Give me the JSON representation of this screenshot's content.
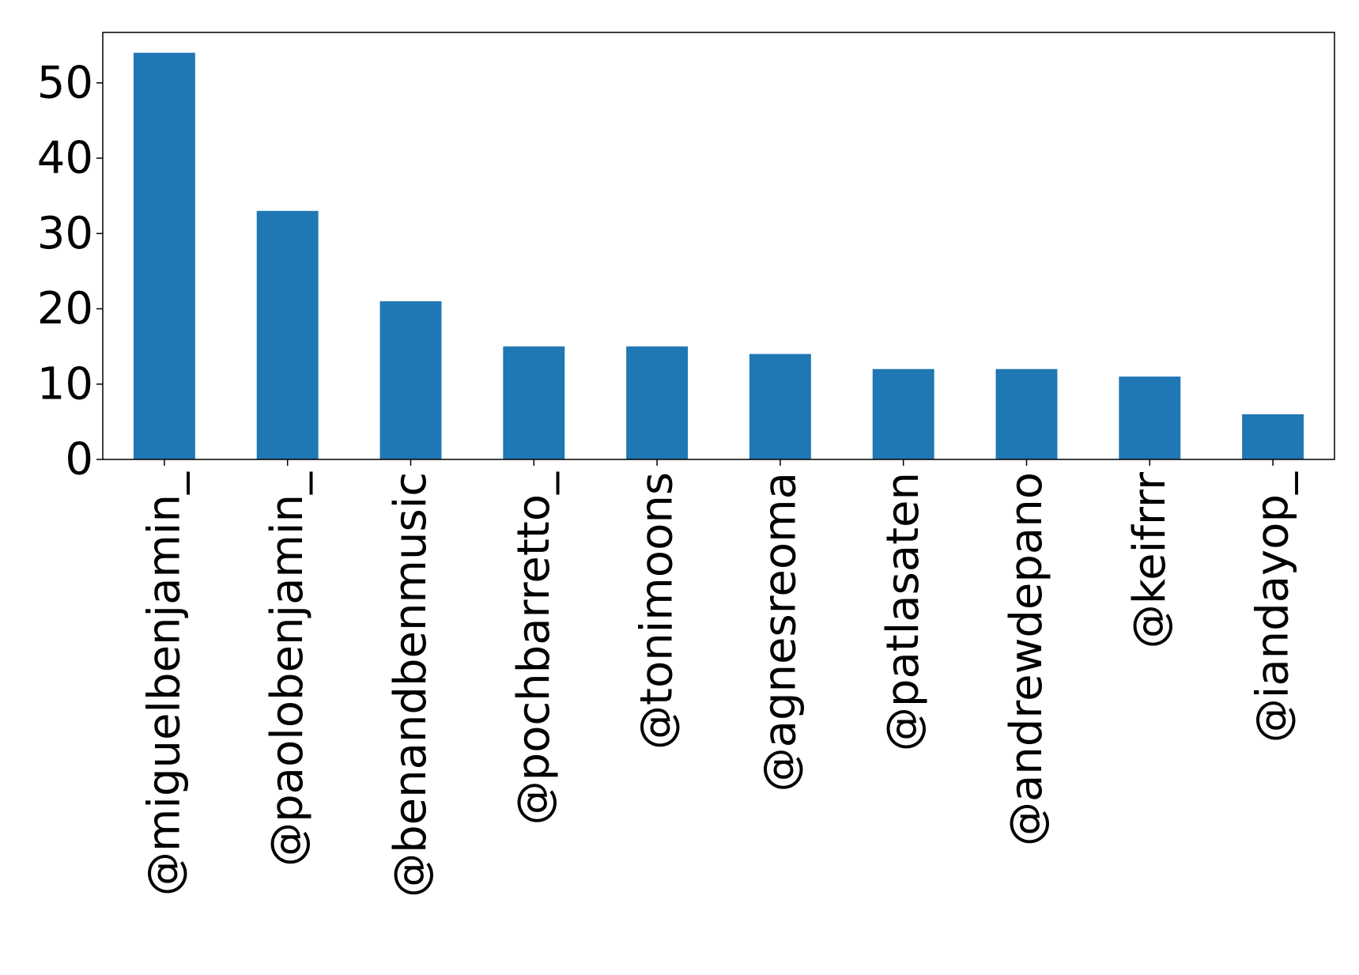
{
  "chart_data": {
    "type": "bar",
    "title": "",
    "xlabel": "",
    "ylabel": "",
    "categories": [
      "@miguelbenjamin_",
      "@paolobenjamin_",
      "@benandbenmusic",
      "@pochbarretto_",
      "@tonimoons",
      "@agnesreoma",
      "@patlasaten",
      "@andrewdepano",
      "@keifrrr",
      "@iandayop_"
    ],
    "values": [
      54,
      33,
      21,
      15,
      15,
      14,
      12,
      12,
      11,
      6
    ],
    "ylim": [
      0,
      56.7
    ],
    "yticks": [
      0,
      10,
      20,
      30,
      40,
      50
    ],
    "grid": false,
    "legend": "none",
    "bar_color": "#1f77b4"
  }
}
